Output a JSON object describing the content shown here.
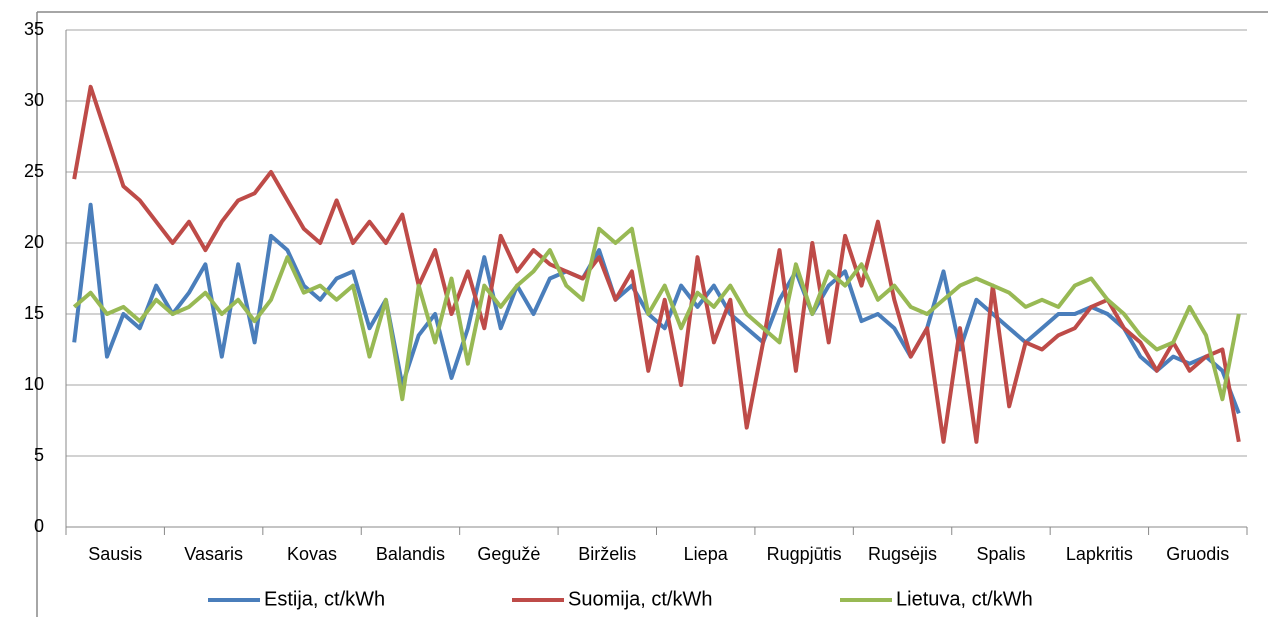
{
  "chart_data": {
    "type": "line",
    "categories": [
      null,
      null,
      "Sausis",
      null,
      null,
      null,
      null,
      null,
      "Vasaris",
      null,
      null,
      null,
      null,
      null,
      "Kovas",
      null,
      null,
      null,
      null,
      null,
      "Balandis",
      null,
      null,
      null,
      null,
      null,
      "Gegužė",
      null,
      null,
      null,
      null,
      null,
      "Birželis",
      null,
      null,
      null,
      null,
      null,
      "Liepa",
      null,
      null,
      null,
      null,
      null,
      "Rugpjūtis",
      null,
      null,
      null,
      null,
      null,
      "Rugsėjis",
      null,
      null,
      null,
      null,
      null,
      "Spalis",
      null,
      null,
      null,
      null,
      null,
      "Lapkritis",
      null,
      null,
      null,
      null,
      null,
      "Gruodis",
      null,
      null,
      null
    ],
    "series": [
      {
        "name": "Estija, ct/kWh",
        "color": "#4a7ebb",
        "values": [
          13,
          22.7,
          12,
          15,
          14,
          17,
          15,
          16.5,
          18.5,
          12,
          18.5,
          13,
          20.5,
          19.5,
          17,
          16,
          17.5,
          18,
          14,
          16,
          10,
          13.5,
          15,
          10.5,
          14,
          19,
          14,
          17,
          15,
          17.5,
          18,
          17.5,
          19.5,
          16,
          17,
          15,
          14,
          17,
          15.5,
          17,
          15,
          14,
          13,
          16,
          18,
          15,
          17,
          18,
          14.5,
          15,
          14,
          12,
          14,
          18,
          12.5,
          16,
          15,
          14,
          13,
          14,
          15,
          15,
          15.5,
          15,
          14,
          12,
          11,
          12,
          11.5,
          12,
          11,
          8
        ]
      },
      {
        "name": "Suomija, ct/kWh",
        "color": "#be4b48",
        "values": [
          24.5,
          31,
          27.5,
          24,
          23,
          21.5,
          20,
          21.5,
          19.5,
          21.5,
          23,
          23.5,
          25,
          23,
          21,
          20,
          23,
          20,
          21.5,
          20,
          22,
          17,
          19.5,
          15,
          18,
          14,
          20.5,
          18,
          19.5,
          18.5,
          18,
          17.5,
          19,
          16,
          18,
          11,
          16,
          10,
          19,
          13,
          16,
          7,
          13,
          19.5,
          11,
          20,
          13,
          20.5,
          17,
          21.5,
          16,
          12,
          14,
          6,
          14,
          6,
          17,
          8.5,
          13,
          12.5,
          13.5,
          14,
          15.5,
          16,
          14,
          13,
          11,
          13,
          11,
          12,
          12.5,
          6
        ]
      },
      {
        "name": "Lietuva, ct/kWh",
        "color": "#98b954",
        "values": [
          15.5,
          16.5,
          15,
          15.5,
          14.5,
          16,
          15,
          15.5,
          16.5,
          15,
          16,
          14.5,
          16,
          19,
          16.5,
          17,
          16,
          17,
          12,
          16,
          9,
          17,
          13,
          17.5,
          11.5,
          17,
          15.5,
          17,
          18,
          19.5,
          17,
          16,
          21,
          20,
          21,
          15,
          17,
          14,
          16.5,
          15.5,
          17,
          15,
          14,
          13,
          18.5,
          15,
          18,
          17,
          18.5,
          16,
          17,
          15.5,
          15,
          16,
          17,
          17.5,
          17,
          16.5,
          15.5,
          16,
          15.5,
          17,
          17.5,
          16,
          15,
          13.5,
          12.5,
          13,
          15.5,
          13.5,
          9,
          15
        ]
      }
    ],
    "ylim": [
      0,
      35
    ],
    "yticks": [
      0,
      5,
      10,
      15,
      20,
      25,
      30,
      35
    ],
    "grid": true,
    "legend": "bottom"
  }
}
